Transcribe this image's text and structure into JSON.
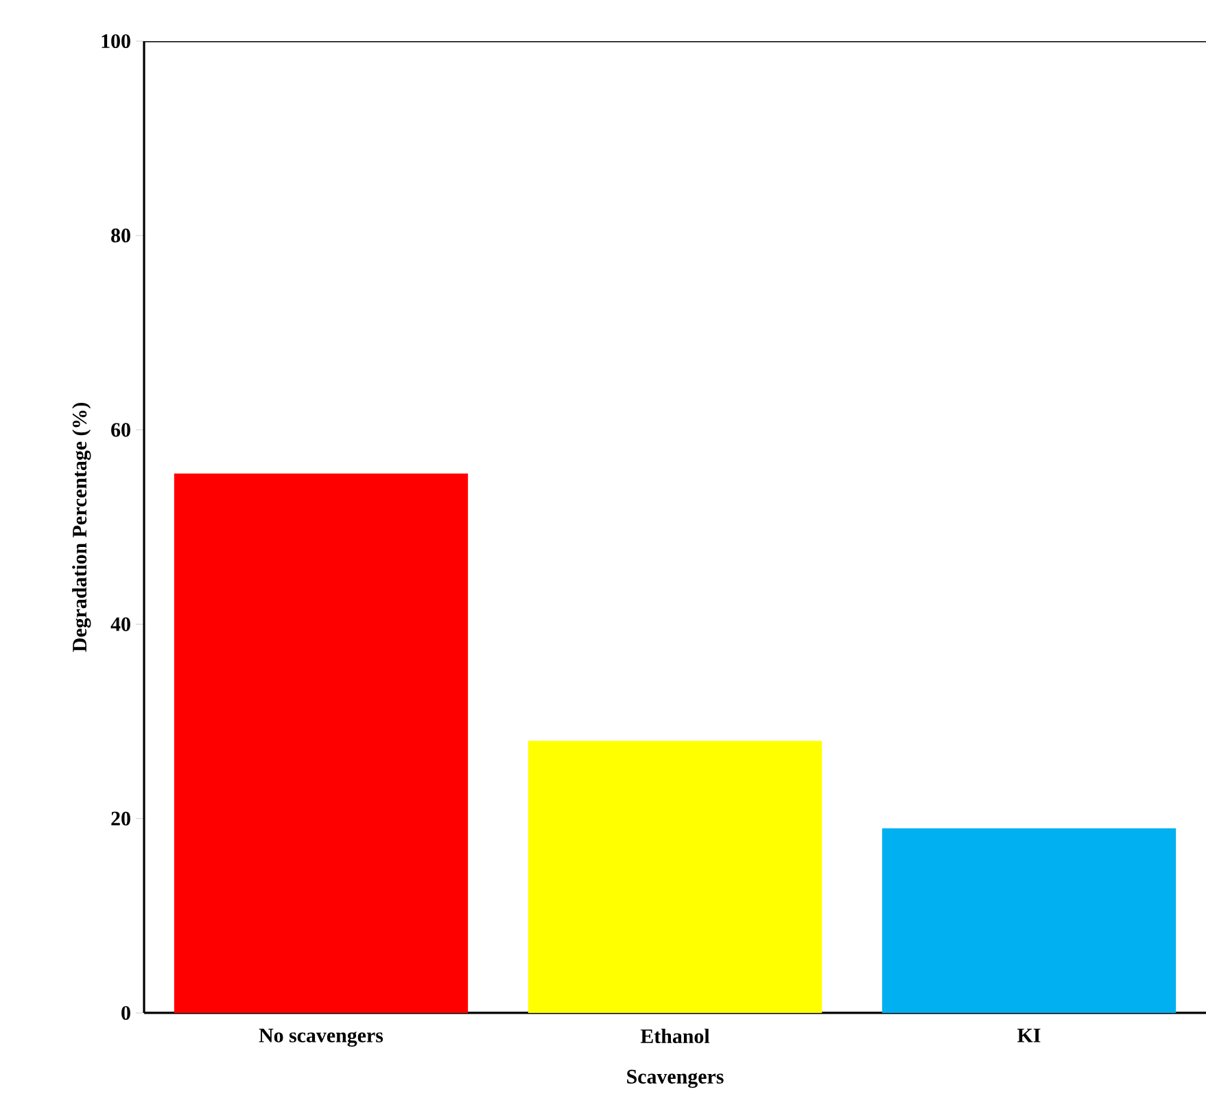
{
  "chart_data": {
    "type": "bar",
    "xlabel": "Scavengers",
    "ylabel": "Degradation Percentage (%)",
    "categories": [
      "No scavengers",
      "Ethanol",
      "KI"
    ],
    "values": [
      55.5,
      28,
      19
    ],
    "colors": [
      "#ff0000",
      "#ffff00",
      "#00b0f0"
    ],
    "ylim": [
      0,
      100
    ],
    "yticks": [
      0,
      20,
      40,
      60,
      80,
      100
    ],
    "grid": false
  }
}
